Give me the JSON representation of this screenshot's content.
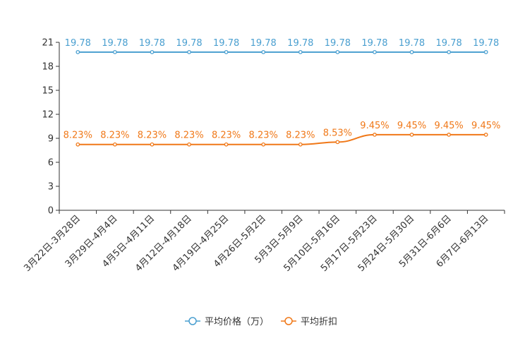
{
  "chart_data": {
    "type": "line",
    "categories": [
      "3月22日-3月28日",
      "3月29日-4月4日",
      "4月5日-4月11日",
      "4月12日-4月18日",
      "4月19日-4月25日",
      "4月26日-5月2日",
      "5月3日-5月9日",
      "5月10日-5月16日",
      "5月17日-5月23日",
      "5月24日-5月30日",
      "5月31日-6月6日",
      "6月7日-6月13日"
    ],
    "ylim": [
      0,
      21
    ],
    "yticks": [
      0,
      3,
      6,
      9,
      12,
      15,
      18,
      21
    ],
    "series": [
      {
        "name": "平均价格（万）",
        "color": "#4a9fd0",
        "values": [
          19.78,
          19.78,
          19.78,
          19.78,
          19.78,
          19.78,
          19.78,
          19.78,
          19.78,
          19.78,
          19.78,
          19.78
        ],
        "labels": [
          "19.78",
          "19.78",
          "19.78",
          "19.78",
          "19.78",
          "19.78",
          "19.78",
          "19.78",
          "19.78",
          "19.78",
          "19.78",
          "19.78"
        ]
      },
      {
        "name": "平均折扣",
        "color": "#f07818",
        "values": [
          8.23,
          8.23,
          8.23,
          8.23,
          8.23,
          8.23,
          8.23,
          8.53,
          9.45,
          9.45,
          9.45,
          9.45
        ],
        "labels": [
          "8.23%",
          "8.23%",
          "8.23%",
          "8.23%",
          "8.23%",
          "8.23%",
          "8.23%",
          "8.53%",
          "9.45%",
          "9.45%",
          "9.45%",
          "9.45%"
        ]
      }
    ],
    "legend_position": "bottom-center",
    "grid": false
  }
}
